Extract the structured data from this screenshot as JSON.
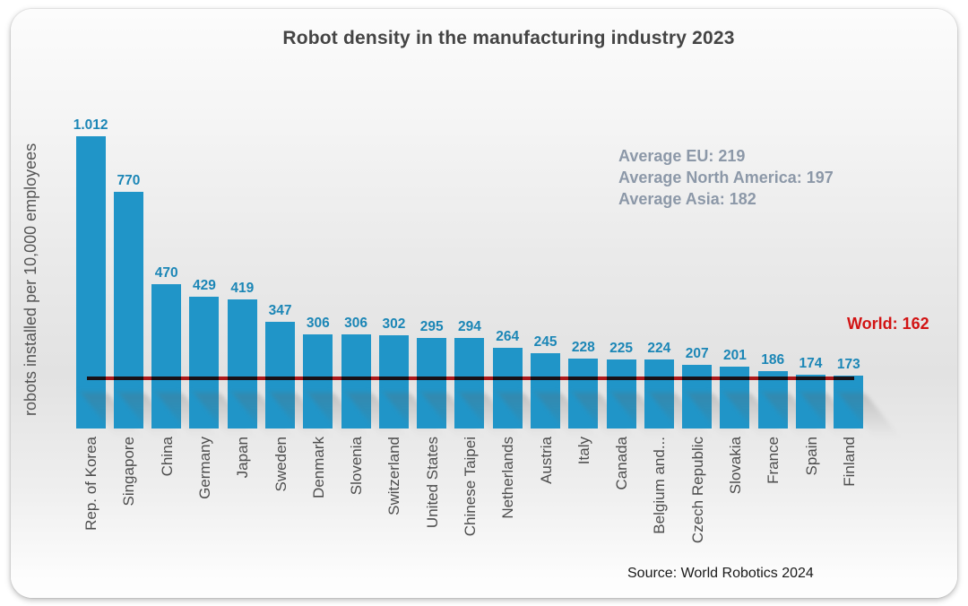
{
  "colors": {
    "bar": "#2095c8",
    "value_label": "#1b86b6",
    "category": "#4d4d4d",
    "title": "#444444",
    "ylabel": "#555555",
    "averages": "#8c98a8",
    "world": "#d21414",
    "line": "#c41c1c",
    "source": "#1a1a1a"
  },
  "chart_data": {
    "type": "bar",
    "title": "Robot density in the manufacturing industry 2023",
    "xlabel": "",
    "ylabel": "robots installed per 10,000 employees",
    "categories": [
      "Rep. of Korea",
      "Singapore",
      "China",
      "Germany",
      "Japan",
      "Sweden",
      "Denmark",
      "Slovenia",
      "Switzerland",
      "United States",
      "Chinese Taipei",
      "Netherlands",
      "Austria",
      "Italy",
      "Canada",
      "Belgium and...",
      "Czech Republic",
      "Slovakia",
      "France",
      "Spain",
      "Finland"
    ],
    "values": [
      1012,
      770,
      470,
      429,
      419,
      347,
      306,
      306,
      302,
      295,
      294,
      264,
      245,
      228,
      225,
      224,
      207,
      201,
      186,
      174,
      173
    ],
    "value_labels": [
      "1.012",
      "770",
      "470",
      "429",
      "419",
      "347",
      "306",
      "306",
      "302",
      "295",
      "294",
      "264",
      "245",
      "228",
      "225",
      "224",
      "207",
      "201",
      "186",
      "174",
      "173"
    ],
    "ylim": [
      0,
      1100
    ],
    "grid": false,
    "legend": "none",
    "reference_line": {
      "label": "World: 162",
      "value": 162
    },
    "annotations": [
      "Average EU: 219",
      "Average North America: 197",
      "Average Asia: 182"
    ],
    "source": "Source: World Robotics 2024"
  }
}
